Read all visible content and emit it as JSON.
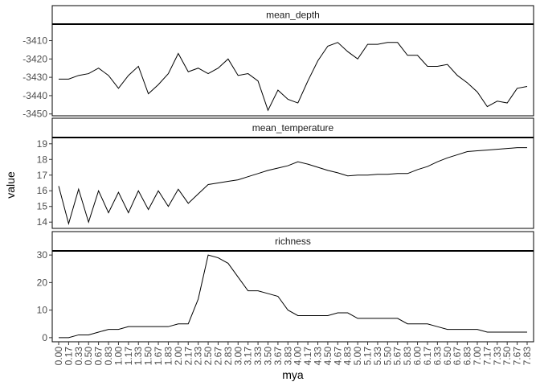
{
  "chart_data": {
    "type": "line",
    "xlabel": "mya",
    "ylabel": "value",
    "x_tick_labels": [
      "0.00",
      "0.17",
      "0.33",
      "0.50",
      "0.67",
      "0.83",
      "1.00",
      "1.17",
      "1.33",
      "1.50",
      "1.67",
      "1.83",
      "2.00",
      "2.17",
      "2.33",
      "2.50",
      "2.67",
      "2.83",
      "3.00",
      "3.17",
      "3.33",
      "3.50",
      "3.67",
      "3.83",
      "4.00",
      "4.17",
      "4.33",
      "4.50",
      "4.67",
      "4.83",
      "5.00",
      "5.17",
      "5.33",
      "5.50",
      "5.67",
      "5.83",
      "6.00",
      "6.17",
      "6.33",
      "6.50",
      "6.67",
      "6.83",
      "7.00",
      "7.17",
      "7.33",
      "7.50",
      "7.67",
      "7.83"
    ],
    "x": [
      0.0,
      0.17,
      0.33,
      0.5,
      0.67,
      0.83,
      1.0,
      1.17,
      1.33,
      1.5,
      1.67,
      1.83,
      2.0,
      2.17,
      2.33,
      2.5,
      2.67,
      2.83,
      3.0,
      3.17,
      3.33,
      3.5,
      3.67,
      3.83,
      4.0,
      4.17,
      4.33,
      4.5,
      4.67,
      4.83,
      5.0,
      5.17,
      5.33,
      5.5,
      5.67,
      5.83,
      6.0,
      6.17,
      6.33,
      6.5,
      6.67,
      6.83,
      7.0,
      7.17,
      7.33,
      7.5,
      7.67,
      7.83
    ],
    "panels": [
      {
        "name": "mean_depth",
        "ylim": [
          -3451,
          -3401
        ],
        "yticks": [
          -3410,
          -3420,
          -3430,
          -3440,
          -3450
        ],
        "values": [
          -3431,
          -3431,
          -3429,
          -3428,
          -3425,
          -3429,
          -3436,
          -3429,
          -3424,
          -3439,
          -3434,
          -3428,
          -3417,
          -3427,
          -3425,
          -3428,
          -3425,
          -3420,
          -3429,
          -3428,
          -3432,
          -3448,
          -3437,
          -3442,
          -3444,
          -3432,
          -3421,
          -3413,
          -3411,
          -3416,
          -3420,
          -3412,
          -3412,
          -3411,
          -3411,
          -3418,
          -3418,
          -3424,
          -3424,
          -3423,
          -3429,
          -3433,
          -3438,
          -3446,
          -3443,
          -3444,
          -3436,
          -3435
        ]
      },
      {
        "name": "mean_temperature",
        "ylim": [
          13.6,
          19.4
        ],
        "yticks": [
          14,
          15,
          16,
          17,
          18,
          19
        ],
        "values": [
          16.3,
          13.9,
          16.1,
          14.0,
          16.0,
          14.6,
          15.9,
          14.6,
          16.0,
          14.8,
          16.0,
          15.0,
          16.1,
          15.2,
          15.8,
          16.4,
          16.5,
          16.6,
          16.7,
          16.9,
          17.1,
          17.3,
          17.45,
          17.6,
          17.85,
          17.7,
          17.5,
          17.3,
          17.15,
          16.95,
          17.0,
          17.0,
          17.05,
          17.05,
          17.1,
          17.1,
          17.35,
          17.55,
          17.85,
          18.1,
          18.3,
          18.5,
          18.55,
          18.6,
          18.65,
          18.7,
          18.75,
          18.75
        ]
      },
      {
        "name": "richness",
        "ylim": [
          -1.5,
          31.5
        ],
        "yticks": [
          0,
          10,
          20,
          30
        ],
        "values": [
          0,
          0,
          1,
          1,
          2,
          3,
          3,
          4,
          4,
          4,
          4,
          4,
          5,
          5,
          14,
          30,
          29,
          27,
          22,
          17,
          17,
          16,
          15,
          10,
          8,
          8,
          8,
          8,
          9,
          9,
          7,
          7,
          7,
          7,
          7,
          5,
          5,
          5,
          4,
          3,
          3,
          3,
          3,
          2,
          2,
          2,
          2,
          2
        ]
      }
    ]
  }
}
